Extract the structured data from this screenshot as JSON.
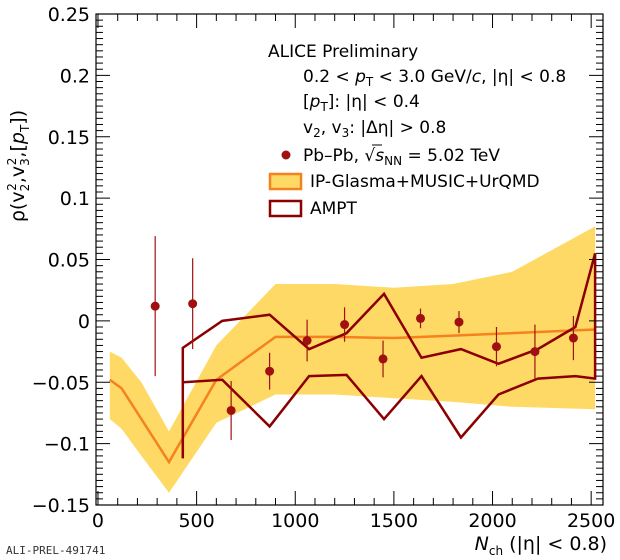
{
  "chart_data": {
    "type": "line",
    "xlabel": "N",
    "xlabel_sub": "ch",
    "xlabel_suffix": " (|η| < 0.8)",
    "ylabel": "ρ(v₂²,v₃²,[pᵀ])",
    "xlim": [
      -10,
      2560
    ],
    "ylim": [
      -0.15,
      0.25
    ],
    "x_ticks": [
      0,
      500,
      1000,
      1500,
      2000,
      2500
    ],
    "y_ticks": [
      -0.15,
      -0.1,
      -0.05,
      0,
      0.05,
      0.1,
      0.15,
      0.2,
      0.25
    ],
    "x_tick_labels": [
      "0",
      "500",
      "1000",
      "1500",
      "2000",
      "2500"
    ],
    "y_tick_labels": [
      "−0.15",
      "−0.1",
      "−0.05",
      "0",
      "0.05",
      "0.1",
      "0.15",
      "0.2",
      "0.25"
    ],
    "grid": false,
    "legend_position": "top-right",
    "annotations": {
      "experiment": "ALICE Preliminary",
      "line_kin_pre": "0.2 < ",
      "line_kin_p": "p",
      "line_kin_T": "T",
      "line_kin_mid": " < 3.0 GeV/",
      "line_kin_c": "c",
      "line_kin_post": ", |η| < 0.8",
      "line_pt_a": "[",
      "line_pt_p": "p",
      "line_pt_T": "T",
      "line_pt_b": "]: |η| < 0.4",
      "line_v_a": "v",
      "line_v_2": "2",
      "line_v_b": ", v",
      "line_v_3": "3",
      "line_v_c": ": |Δη| > 0.8"
    },
    "legend": {
      "data_label_pre": "Pb–Pb, ",
      "data_label_s": "s",
      "data_label_NN": "NN",
      "data_label_post": " = 5.02 TeV",
      "model1": "IP-Glasma+MUSIC+UrQMD",
      "model2": "AMPT"
    },
    "footer_id": "ALI-PREL-491741",
    "colors": {
      "data_points": "#a01010",
      "band_fill": "#ffd966",
      "band_line": "#f5821f",
      "ampt": "#8b0000"
    },
    "series": [
      {
        "name": "Pb–Pb, √s_NN = 5.02 TeV",
        "kind": "points",
        "x": [
          290,
          480,
          675,
          870,
          1060,
          1250,
          1445,
          1635,
          1830,
          2020,
          2215,
          2410
        ],
        "y": [
          0.012,
          0.014,
          -0.073,
          -0.041,
          -0.016,
          -0.003,
          -0.031,
          0.002,
          -0.001,
          -0.021,
          -0.025,
          -0.014
        ],
        "err": [
          0.057,
          0.037,
          0.024,
          0.015,
          0.017,
          0.014,
          0.015,
          0.008,
          0.009,
          0.016,
          0.022,
          0.018
        ]
      },
      {
        "name": "IP-Glasma+MUSIC+UrQMD",
        "kind": "band",
        "x": [
          60,
          120,
          220,
          360,
          600,
          900,
          1200,
          1500,
          1800,
          2100,
          2520
        ],
        "y": [
          -0.048,
          -0.055,
          -0.08,
          -0.115,
          -0.048,
          -0.013,
          -0.013,
          -0.014,
          -0.012,
          -0.01,
          -0.007
        ],
        "y_low": [
          -0.08,
          -0.088,
          -0.11,
          -0.14,
          -0.083,
          -0.06,
          -0.06,
          -0.063,
          -0.066,
          -0.07,
          -0.072
        ],
        "y_high": [
          -0.025,
          -0.03,
          -0.05,
          -0.09,
          -0.02,
          0.03,
          0.03,
          0.027,
          0.03,
          0.04,
          0.077
        ]
      },
      {
        "name": "AMPT",
        "kind": "envelope",
        "x": [
          430,
          430,
          630,
          870,
          1070,
          1260,
          1450,
          1640,
          1840,
          2030,
          2230,
          2420,
          2520,
          2520,
          2420,
          2230,
          2030,
          1840,
          1640,
          1450,
          1260,
          1070,
          870,
          630,
          430
        ],
        "y": [
          -0.112,
          -0.022,
          0.0,
          0.005,
          -0.023,
          -0.01,
          0.022,
          -0.03,
          -0.023,
          -0.035,
          -0.023,
          -0.005,
          0.055,
          -0.047,
          -0.045,
          -0.047,
          -0.06,
          -0.095,
          -0.045,
          -0.08,
          -0.044,
          -0.045,
          -0.086,
          -0.048,
          -0.05
        ]
      }
    ]
  }
}
